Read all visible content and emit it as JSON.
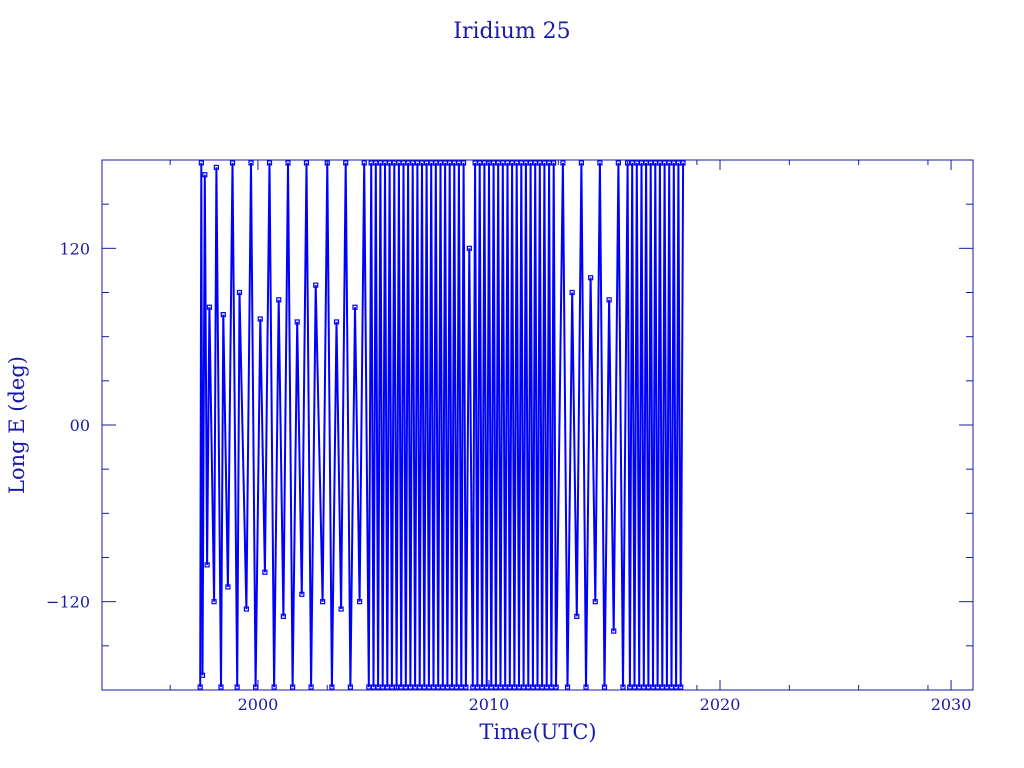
{
  "chart_data": {
    "type": "line",
    "title": "Iridium 25",
    "xlabel": "Time(UTC)",
    "ylabel": "Long E (deg)",
    "xlim": [
      1993.25,
      2030.95
    ],
    "ylim": [
      -180,
      180
    ],
    "xticks": [
      2000,
      2010,
      2020,
      2030
    ],
    "xtick_labels": [
      "2000",
      "2010",
      "2020",
      "2030"
    ],
    "yticks": [
      120,
      0,
      -120
    ],
    "ytick_labels": [
      "120",
      "00",
      "−120"
    ],
    "y_minor_step": 30,
    "grid": false,
    "colors": {
      "series": "#0000ff",
      "axes": "#1a1aa8"
    },
    "series": [
      {
        "x": [
          1997.5,
          1997.55,
          1997.6,
          1997.7,
          1997.8,
          1997.9,
          1998.1,
          1998.2,
          1998.4,
          1998.5,
          1998.7,
          1998.9,
          1999.1,
          1999.2,
          1999.5,
          1999.7,
          1999.9,
          2000.1,
          2000.3,
          2000.5,
          2000.7,
          2000.9,
          2001.1,
          2001.3,
          2001.5,
          2001.7,
          2001.9,
          2002.1,
          2002.3,
          2002.5,
          2002.8,
          2003.0,
          2003.2,
          2003.4,
          2003.6,
          2003.8,
          2004.0,
          2004.2,
          2004.4,
          2004.6,
          2004.8,
          2004.9,
          2005.0,
          2005.1,
          2005.2,
          2005.3,
          2005.4,
          2005.5,
          2005.6,
          2005.7,
          2005.8,
          2005.9,
          2006.0,
          2006.1,
          2006.2,
          2006.3,
          2006.4,
          2006.5,
          2006.6,
          2006.7,
          2006.8,
          2006.9,
          2007.0,
          2007.1,
          2007.2,
          2007.3,
          2007.4,
          2007.5,
          2007.6,
          2007.7,
          2007.8,
          2007.9,
          2008.0,
          2008.1,
          2008.2,
          2008.3,
          2008.4,
          2008.5,
          2008.6,
          2008.7,
          2008.8,
          2008.9,
          2009.0,
          2009.15,
          2009.3,
          2009.4,
          2009.5,
          2009.6,
          2009.7,
          2009.8,
          2009.9,
          2010.0,
          2010.1,
          2010.2,
          2010.3,
          2010.4,
          2010.5,
          2010.6,
          2010.7,
          2010.8,
          2010.9,
          2011.0,
          2011.1,
          2011.2,
          2011.3,
          2011.4,
          2011.5,
          2011.6,
          2011.7,
          2011.8,
          2011.9,
          2012.0,
          2012.1,
          2012.2,
          2012.3,
          2012.4,
          2012.5,
          2012.6,
          2012.7,
          2012.8,
          2012.9,
          2013.2,
          2013.4,
          2013.6,
          2013.8,
          2014.0,
          2014.2,
          2014.4,
          2014.6,
          2014.8,
          2015.0,
          2015.2,
          2015.4,
          2015.6,
          2015.8,
          2016.0,
          2016.1,
          2016.2,
          2016.3,
          2016.4,
          2016.5,
          2016.6,
          2016.7,
          2016.8,
          2016.9,
          2017.0,
          2017.1,
          2017.2,
          2017.3,
          2017.4,
          2017.5,
          2017.6,
          2017.7,
          2017.8,
          2017.9,
          2018.0,
          2018.1,
          2018.2,
          2018.3,
          2018.4
        ],
        "y": [
          -178,
          178,
          -170,
          170,
          -95,
          80,
          -120,
          175,
          -178,
          75,
          -110,
          178,
          -178,
          90,
          -125,
          178,
          -178,
          72,
          -100,
          178,
          -178,
          85,
          -130,
          178,
          -178,
          70,
          -115,
          178,
          -178,
          95,
          -120,
          178,
          -178,
          70,
          -125,
          178,
          -178,
          80,
          -120,
          178,
          -178,
          178,
          -178,
          178,
          -178,
          178,
          -178,
          178,
          -178,
          178,
          -178,
          178,
          -178,
          178,
          -178,
          178,
          -178,
          178,
          -178,
          178,
          -178,
          178,
          -178,
          178,
          -178,
          178,
          -178,
          178,
          -178,
          178,
          -178,
          178,
          -178,
          178,
          -178,
          178,
          -178,
          178,
          -178,
          178,
          -178,
          178,
          -178,
          120,
          -178,
          178,
          -178,
          178,
          -178,
          178,
          -178,
          178,
          -178,
          178,
          -178,
          178,
          -178,
          178,
          -178,
          178,
          -178,
          178,
          -178,
          178,
          -178,
          178,
          -178,
          178,
          -178,
          178,
          -178,
          178,
          -178,
          178,
          -178,
          178,
          -178,
          178,
          -178,
          178,
          -178,
          178,
          -178,
          90,
          -130,
          178,
          -178,
          100,
          -120,
          178,
          -178,
          85,
          -140,
          178,
          -178,
          178,
          -178,
          178,
          -178,
          178,
          -178,
          178,
          -178,
          178,
          -178,
          178,
          -178,
          178,
          -178,
          178,
          -178,
          178,
          -178,
          178,
          -178,
          178,
          -178,
          178,
          -178,
          178
        ]
      }
    ]
  }
}
